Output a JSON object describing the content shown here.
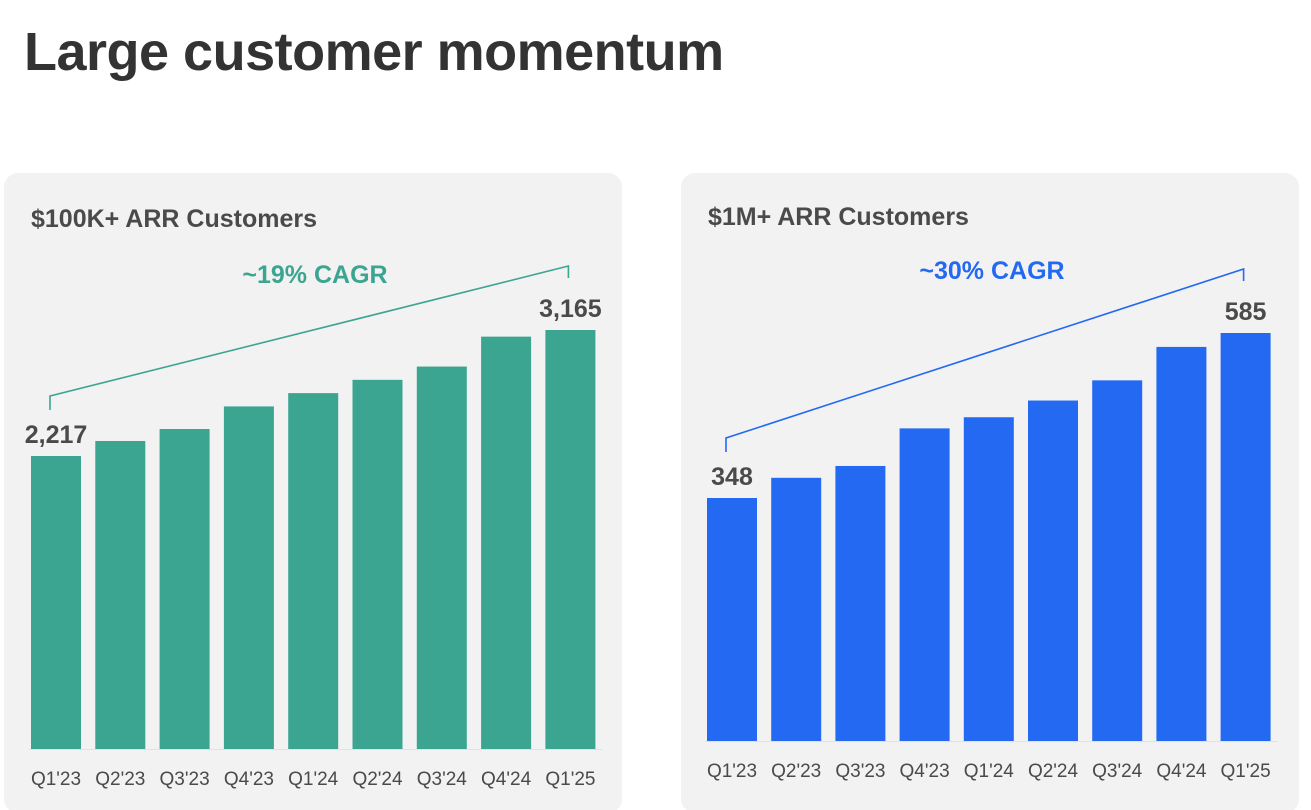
{
  "page": {
    "title": "Large customer momentum"
  },
  "chart_data": [
    {
      "type": "bar",
      "title": "$100K+ ARR Customers",
      "categories": [
        "Q1'23",
        "Q2'23",
        "Q3'23",
        "Q4'23",
        "Q1'24",
        "Q2'24",
        "Q3'24",
        "Q4'24",
        "Q1'25"
      ],
      "values": [
        2217,
        2330,
        2420,
        2590,
        2690,
        2790,
        2890,
        3115,
        3165
      ],
      "data_labels": {
        "first": "2,217",
        "last": "3,165"
      },
      "annotation": "~19% CAGR",
      "color": "#3ba591",
      "xlabel": "",
      "ylabel": "",
      "grid": false
    },
    {
      "type": "bar",
      "title": "$1M+ ARR Customers",
      "categories": [
        "Q1'23",
        "Q2'23",
        "Q3'23",
        "Q4'23",
        "Q1'24",
        "Q2'24",
        "Q3'24",
        "Q4'24",
        "Q1'25"
      ],
      "values": [
        348,
        377,
        394,
        448,
        464,
        488,
        517,
        565,
        585
      ],
      "data_labels": {
        "first": "348",
        "last": "585"
      },
      "annotation": "~30% CAGR",
      "color": "#2369f1",
      "xlabel": "",
      "ylabel": "",
      "grid": false
    }
  ]
}
